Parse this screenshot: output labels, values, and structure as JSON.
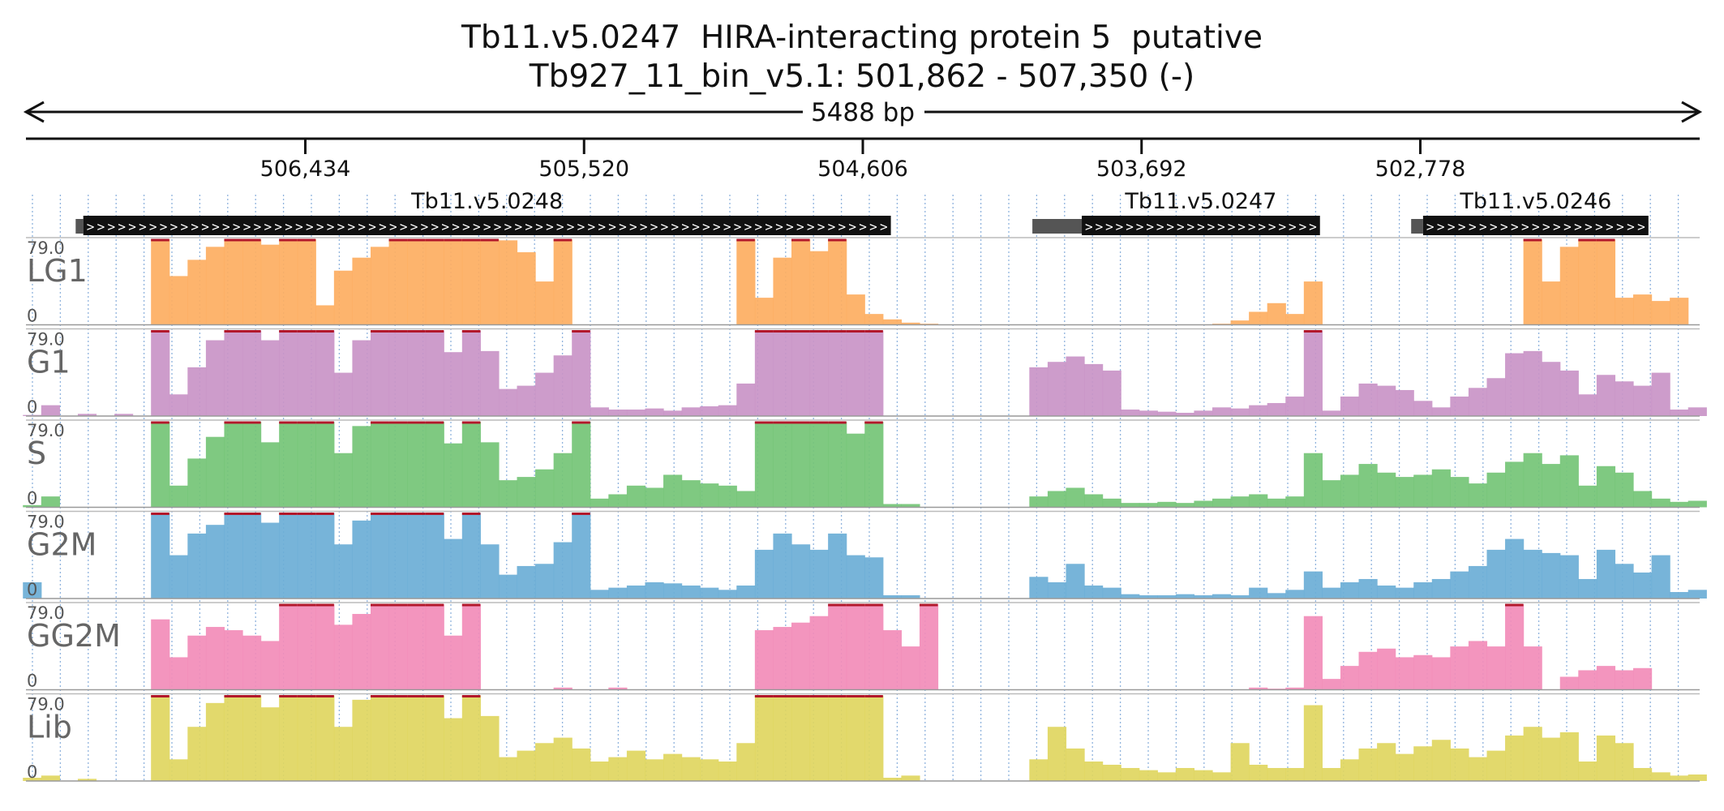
{
  "title": "Tb11.v5.0247  HIRA-interacting protein 5  putative",
  "subtitle": "Tb927_11_bin_v5.1: 501,862 - 507,350 (-)",
  "chart_data": {
    "type": "area",
    "x_reversed": true,
    "xlim": [
      507350,
      501862
    ],
    "span_label": "5488 bp",
    "x_ticks": [
      506434,
      505520,
      504606,
      503692,
      502778
    ],
    "x_tick_labels": [
      "506,434",
      "505,520",
      "504,606",
      "503,692",
      "502,778"
    ],
    "genes": [
      {
        "name": "Tb11.v5.0248",
        "start": 507162,
        "end": 504514,
        "utr_start": 507187,
        "utr_end": 507162
      },
      {
        "name": "Tb11.v5.0247",
        "start": 503888,
        "end": 503107,
        "utr_start": 504050,
        "utr_end": 503888
      },
      {
        "name": "Tb11.v5.0246",
        "start": 502769,
        "end": 502030,
        "utr_start": 502808,
        "utr_end": 502769
      }
    ],
    "ylim": [
      0,
      79.0
    ],
    "y_top_label": "79.0",
    "y_bottom_label": "0",
    "x": [
      507330,
      507270,
      507210,
      507150,
      507090,
      507030,
      506970,
      506910,
      506850,
      506790,
      506730,
      506670,
      506610,
      506550,
      506490,
      506430,
      506370,
      506310,
      506250,
      506190,
      506130,
      506070,
      506010,
      505950,
      505890,
      505830,
      505770,
      505710,
      505650,
      505590,
      505530,
      505470,
      505410,
      505350,
      505290,
      505230,
      505170,
      505110,
      505050,
      504990,
      504930,
      504870,
      504810,
      504750,
      504690,
      504630,
      504570,
      504510,
      504450,
      504390,
      504330,
      504270,
      504210,
      504150,
      504090,
      504030,
      503970,
      503910,
      503850,
      503790,
      503730,
      503670,
      503610,
      503550,
      503490,
      503430,
      503370,
      503310,
      503250,
      503190,
      503130,
      503070,
      503010,
      502950,
      502890,
      502830,
      502770,
      502710,
      502650,
      502590,
      502530,
      502470,
      502410,
      502350,
      502290,
      502230,
      502170,
      502110,
      502050,
      501990,
      501930,
      501870
    ],
    "series": [
      {
        "name": "LG1",
        "color": "#fdae61",
        "values": [
          0,
          0,
          0,
          0,
          0,
          0,
          0,
          79,
          45,
          60,
          72,
          79,
          79,
          74,
          79,
          79,
          18,
          50,
          62,
          72,
          79,
          79,
          79,
          79,
          79,
          79,
          78,
          67,
          40,
          79,
          0,
          0,
          0,
          0,
          0,
          0,
          0,
          0,
          0,
          79,
          25,
          62,
          79,
          68,
          79,
          28,
          10,
          5,
          2,
          1,
          0,
          0,
          0,
          0,
          0,
          0,
          0,
          0,
          0,
          0,
          0,
          0,
          0,
          0,
          0,
          1,
          4,
          12,
          20,
          10,
          40,
          0,
          0,
          0,
          0,
          0,
          0,
          0,
          0,
          0,
          0,
          0,
          79,
          40,
          72,
          79,
          79,
          25,
          28,
          22,
          25,
          0
        ]
      },
      {
        "name": "G1",
        "color": "#c994c7",
        "values": [
          1,
          10,
          0,
          2,
          0,
          2,
          0,
          79,
          20,
          45,
          70,
          79,
          79,
          70,
          79,
          79,
          79,
          40,
          70,
          79,
          79,
          79,
          79,
          59,
          79,
          60,
          25,
          28,
          40,
          56,
          79,
          8,
          6,
          6,
          7,
          5,
          8,
          9,
          10,
          30,
          79,
          79,
          79,
          79,
          79,
          79,
          79,
          0,
          0,
          0,
          0,
          0,
          0,
          0,
          0,
          45,
          50,
          55,
          48,
          42,
          6,
          5,
          4,
          3,
          5,
          8,
          7,
          10,
          12,
          18,
          79,
          5,
          18,
          30,
          28,
          24,
          14,
          8,
          18,
          26,
          35,
          58,
          60,
          50,
          42,
          20,
          38,
          32,
          28,
          40,
          6,
          8
        ]
      },
      {
        "name": "S",
        "color": "#74c476",
        "values": [
          2,
          10,
          0,
          0,
          0,
          0,
          0,
          79,
          20,
          45,
          65,
          79,
          79,
          60,
          79,
          79,
          79,
          50,
          75,
          79,
          79,
          79,
          79,
          59,
          79,
          60,
          25,
          28,
          35,
          50,
          79,
          8,
          12,
          20,
          18,
          30,
          25,
          22,
          20,
          15,
          79,
          79,
          79,
          79,
          79,
          68,
          79,
          3,
          3,
          0,
          0,
          0,
          0,
          0,
          0,
          10,
          15,
          18,
          12,
          8,
          4,
          4,
          5,
          4,
          6,
          8,
          10,
          12,
          8,
          10,
          50,
          25,
          30,
          40,
          32,
          28,
          30,
          35,
          28,
          22,
          32,
          42,
          50,
          40,
          48,
          20,
          38,
          32,
          15,
          8,
          5,
          6
        ]
      },
      {
        "name": "G2M",
        "color": "#6baed6",
        "values": [
          15,
          0,
          0,
          0,
          0,
          0,
          0,
          79,
          40,
          60,
          68,
          79,
          79,
          70,
          79,
          79,
          79,
          50,
          72,
          79,
          79,
          79,
          79,
          55,
          79,
          50,
          22,
          30,
          32,
          52,
          79,
          8,
          10,
          12,
          15,
          14,
          12,
          10,
          8,
          12,
          45,
          60,
          50,
          45,
          60,
          40,
          38,
          3,
          3,
          0,
          0,
          0,
          0,
          0,
          0,
          20,
          15,
          32,
          12,
          10,
          4,
          3,
          3,
          4,
          3,
          4,
          3,
          10,
          5,
          8,
          25,
          10,
          15,
          18,
          12,
          10,
          15,
          18,
          25,
          30,
          45,
          55,
          45,
          42,
          40,
          18,
          45,
          32,
          24,
          40,
          6,
          8
        ]
      },
      {
        "name": "GG2M",
        "color": "#f28cb8",
        "values": [
          0,
          0,
          0,
          0,
          0,
          0,
          0,
          65,
          30,
          50,
          58,
          55,
          50,
          45,
          79,
          79,
          79,
          60,
          70,
          79,
          79,
          79,
          79,
          50,
          79,
          0,
          0,
          0,
          0,
          2,
          0,
          0,
          2,
          0,
          0,
          0,
          0,
          0,
          0,
          0,
          55,
          58,
          62,
          68,
          79,
          79,
          79,
          55,
          40,
          79,
          0,
          0,
          0,
          0,
          0,
          0,
          0,
          0,
          0,
          0,
          0,
          0,
          0,
          0,
          0,
          0,
          0,
          2,
          1,
          2,
          68,
          10,
          22,
          35,
          38,
          30,
          32,
          30,
          40,
          45,
          40,
          79,
          40,
          0,
          12,
          18,
          22,
          18,
          20,
          0,
          0,
          0
        ]
      },
      {
        "name": "Lib",
        "color": "#dfd660",
        "values": [
          3,
          5,
          0,
          2,
          0,
          0,
          0,
          79,
          20,
          50,
          72,
          79,
          79,
          68,
          79,
          79,
          79,
          50,
          75,
          79,
          79,
          79,
          79,
          58,
          79,
          60,
          22,
          28,
          35,
          40,
          30,
          18,
          22,
          28,
          20,
          25,
          22,
          20,
          18,
          35,
          79,
          79,
          79,
          79,
          79,
          79,
          79,
          3,
          5,
          0,
          0,
          0,
          0,
          0,
          0,
          20,
          50,
          30,
          18,
          15,
          12,
          10,
          8,
          12,
          10,
          8,
          35,
          15,
          12,
          12,
          70,
          12,
          20,
          30,
          35,
          25,
          32,
          38,
          30,
          22,
          28,
          42,
          50,
          40,
          45,
          18,
          42,
          35,
          12,
          8,
          5,
          6
        ]
      }
    ]
  }
}
